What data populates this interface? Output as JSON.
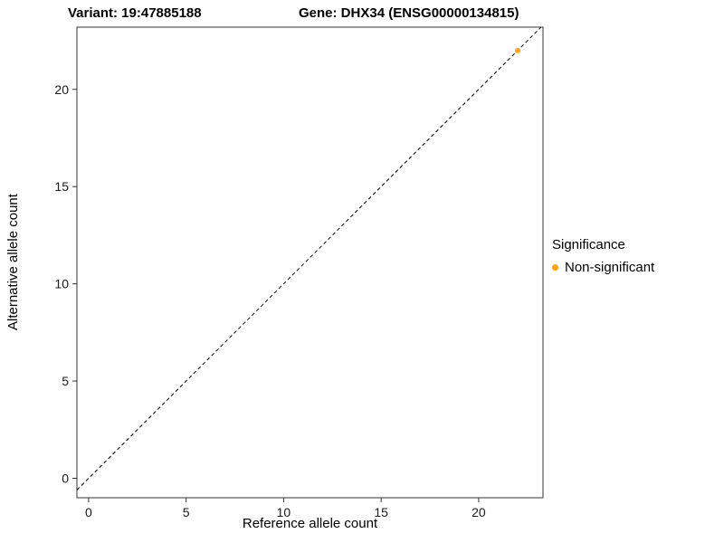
{
  "titles": {
    "variant": "Variant: 19:47885188",
    "gene": "Gene: DHX34 (ENSG00000134815)"
  },
  "chart_data": {
    "type": "scatter",
    "title": "Variant: 19:47885188   Gene: DHX34 (ENSG00000134815)",
    "xlabel": "Reference allele count",
    "ylabel": "Alternative allele count",
    "xlim": [
      -0.6,
      23.3
    ],
    "ylim": [
      -1.0,
      23.2
    ],
    "xticks": [
      0,
      5,
      10,
      15,
      20
    ],
    "yticks": [
      0,
      5,
      10,
      15,
      20
    ],
    "grid": false,
    "panel_border_color": "#333333",
    "series": [
      {
        "name": "Non-significant",
        "color": "#FFA217",
        "points": [
          [
            22,
            22
          ]
        ]
      }
    ],
    "reference_line": {
      "kind": "identity",
      "style": "dashed",
      "color": "#000000",
      "from": [
        -0.6,
        -0.6
      ],
      "to": [
        23.2,
        23.2
      ]
    },
    "legend": {
      "title": "Significance",
      "position": "right",
      "entries": [
        {
          "label": "Non-significant",
          "color": "#FFA217"
        }
      ]
    }
  }
}
